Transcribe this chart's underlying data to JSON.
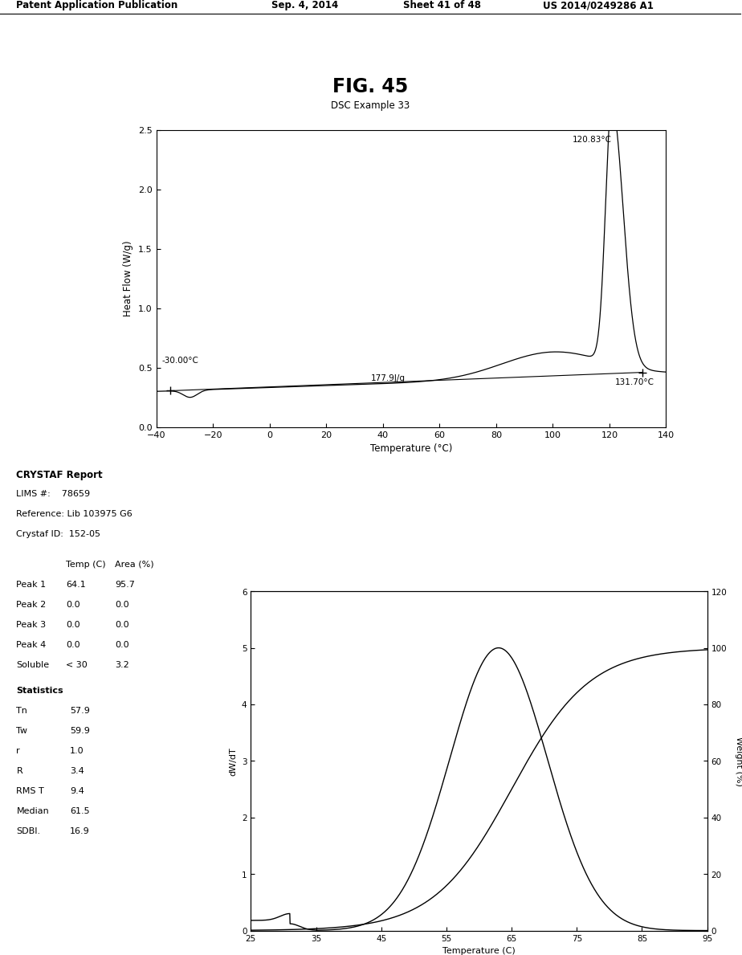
{
  "fig_title": "FIG. 45",
  "fig_subtitle": "DSC Example 33",
  "patent_header": "Patent Application Publication",
  "patent_date": "Sep. 4, 2014",
  "patent_sheet": "Sheet 41 of 48",
  "patent_number": "US 2014/0249286 A1",
  "dsc": {
    "xlim": [
      -40,
      140
    ],
    "ylim": [
      0.0,
      2.5
    ],
    "xlabel": "Temperature (°C)",
    "ylabel": "Heat Flow (W/g)",
    "xticks": [
      -40,
      -20,
      0,
      20,
      40,
      60,
      80,
      100,
      120,
      140
    ],
    "yticks": [
      0.0,
      0.5,
      1.0,
      1.5,
      2.0,
      2.5
    ],
    "peak_label": "120.83°C",
    "onset_label": "-30.00°C",
    "enthalpy": "177.9J/g",
    "end_label": "131.70°C"
  },
  "crystaf": {
    "title": "CRYSTAF Report",
    "lims": "78659",
    "reference": "Lib 103975 G6",
    "crystaf_id": "152-05",
    "table_rows": [
      [
        "Peak 1",
        "64.1",
        "95.7"
      ],
      [
        "Peak 2",
        "0.0",
        "0.0"
      ],
      [
        "Peak 3",
        "0.0",
        "0.0"
      ],
      [
        "Peak 4",
        "0.0",
        "0.0"
      ],
      [
        "Soluble",
        "< 30",
        "3.2"
      ]
    ],
    "stats": [
      [
        "Tn",
        "57.9"
      ],
      [
        "Tw",
        "59.9"
      ],
      [
        "r",
        "1.0"
      ],
      [
        "R",
        "3.4"
      ],
      [
        "RMS T",
        "9.4"
      ],
      [
        "Median",
        "61.5"
      ],
      [
        "SDBI.",
        "16.9"
      ]
    ],
    "plot": {
      "xlim": [
        25,
        95
      ],
      "ylim_left": [
        0,
        6
      ],
      "ylim_right": [
        0,
        120
      ],
      "xlabel": "Temperature (C)",
      "ylabel_left": "dW/dT",
      "ylabel_right": "Weight (%)",
      "xticks": [
        25,
        35,
        45,
        55,
        65,
        75,
        85,
        95
      ],
      "yticks_left": [
        0,
        1,
        2,
        3,
        4,
        5,
        6
      ],
      "yticks_right": [
        0,
        20,
        40,
        60,
        80,
        100,
        120
      ]
    }
  },
  "line_color": "#000000",
  "background_color": "#ffffff"
}
